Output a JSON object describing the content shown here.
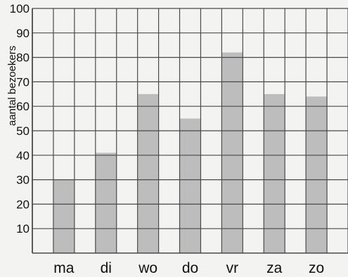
{
  "chart_data": {
    "type": "bar",
    "categories": [
      "ma",
      "di",
      "wo",
      "do",
      "vr",
      "za",
      "zo"
    ],
    "values": [
      30,
      41,
      65,
      55,
      82,
      65,
      64
    ],
    "ylabel": "aantal bezoekers",
    "ylim": [
      0,
      100
    ],
    "yticks": [
      "10",
      "20",
      "30",
      "40",
      "50",
      "60",
      "70",
      "80",
      "90",
      "100"
    ],
    "grid": true
  },
  "colors": {
    "bar_fill": "#bdbdbd",
    "grid_line": "#4a4a4a",
    "background": "#f3f3f1"
  }
}
